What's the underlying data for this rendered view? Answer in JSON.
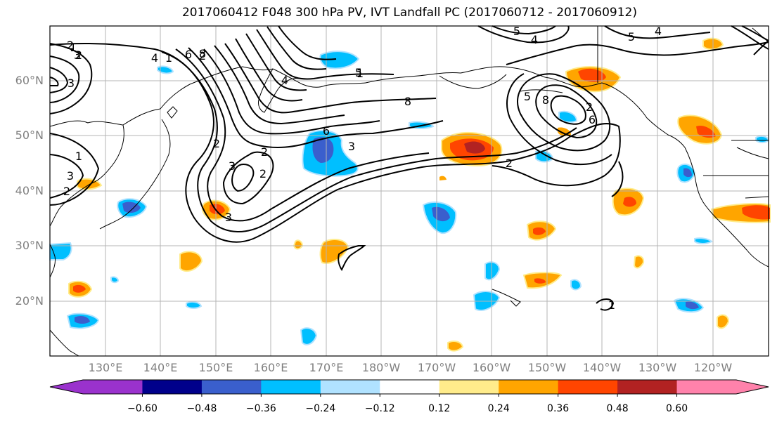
{
  "title": "2017060412 F048 300 hPa PV, IVT Landfall PC (2017060712 - 2017060912)",
  "lat_labels": [
    "60°N",
    "50°N",
    "40°N",
    "30°N",
    "20°N"
  ],
  "lon_labels": [
    "130°E",
    "140°E",
    "150°E",
    "160°E",
    "170°E",
    "180°W",
    "170°W",
    "160°W",
    "150°W",
    "140°W",
    "130°W",
    "120°W"
  ],
  "colorbar": {
    "tick_labels": [
      "−0.60",
      "−0.48",
      "−0.36",
      "−0.24",
      "−0.12",
      "0.12",
      "0.24",
      "0.36",
      "0.48",
      "0.60"
    ],
    "colors": [
      "#9a32cd",
      "#00008b",
      "#3a5fcd",
      "#00bfff",
      "#b0e2ff",
      "#ffffff",
      "#ffec8b",
      "#ffa500",
      "#ff4500",
      "#b22222",
      "#ff82ab"
    ]
  },
  "contour_labels": [
    "1",
    "2",
    "3",
    "4",
    "5",
    "6",
    "8",
    "8",
    "2",
    "3",
    "1",
    "2",
    "4",
    "1",
    "2",
    "3",
    "6",
    "2",
    "3",
    "5",
    "4",
    "1",
    "2",
    "8",
    "5",
    "6",
    "2",
    "4",
    "5",
    "3",
    "2",
    "1",
    "3",
    "2"
  ],
  "shading_colors": {
    "pos_light": "#ffec8b",
    "pos": "#ffa500",
    "pos_strong": "#ff4500",
    "pos_max": "#b22222",
    "neg_light": "#b0e2ff",
    "neg": "#00bfff",
    "neg_strong": "#3a5fcd"
  }
}
